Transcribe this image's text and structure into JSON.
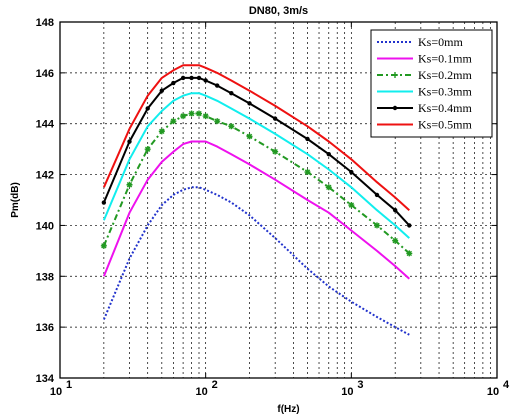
{
  "chart_data": {
    "type": "line",
    "title": "DN80,  3m/s",
    "xlabel": "f(Hz)",
    "ylabel": "Pm(dB)",
    "x_scale": "log",
    "xlim": [
      10,
      10000
    ],
    "ylim": [
      134,
      148
    ],
    "grid": true,
    "legend_position": "top-right",
    "x_tick_labels": [
      {
        "value": 10,
        "label": "10"
      },
      {
        "value": 100,
        "label": "10"
      },
      {
        "value": 1000,
        "label": "10"
      },
      {
        "value": 10000,
        "label": "10"
      }
    ],
    "y_ticks": [
      134,
      136,
      138,
      140,
      142,
      144,
      146,
      148
    ],
    "x": [
      20,
      30,
      40,
      50,
      60,
      70,
      80,
      90,
      100,
      120,
      150,
      200,
      300,
      500,
      700,
      1000,
      1500,
      2000,
      2500
    ],
    "series": [
      {
        "name": "Ks=0mm",
        "color": "#2233cc",
        "style": "dotted",
        "marker": "none",
        "values": [
          136.3,
          138.7,
          140.0,
          140.8,
          141.2,
          141.4,
          141.5,
          141.5,
          141.4,
          141.2,
          140.9,
          140.4,
          139.5,
          138.3,
          137.6,
          137.0,
          136.4,
          136.0,
          135.7
        ]
      },
      {
        "name": "Ks=0.1mm",
        "color": "#ee11ee",
        "style": "solid",
        "marker": "none",
        "values": [
          138.0,
          140.5,
          141.8,
          142.5,
          142.9,
          143.2,
          143.3,
          143.3,
          143.3,
          143.1,
          142.8,
          142.4,
          141.8,
          141.0,
          140.5,
          139.8,
          139.0,
          138.4,
          137.9
        ]
      },
      {
        "name": "Ks=0.2mm",
        "color": "#229922",
        "style": "dashdot",
        "marker": "star",
        "values": [
          139.2,
          141.6,
          143.0,
          143.7,
          144.1,
          144.3,
          144.4,
          144.4,
          144.3,
          144.1,
          143.9,
          143.5,
          142.9,
          142.1,
          141.5,
          140.8,
          140.0,
          139.4,
          138.9
        ]
      },
      {
        "name": "Ks=0.3mm",
        "color": "#11eeee",
        "style": "solid",
        "marker": "none",
        "values": [
          140.2,
          142.6,
          143.9,
          144.5,
          144.9,
          145.1,
          145.2,
          145.2,
          145.1,
          144.9,
          144.6,
          144.2,
          143.6,
          142.8,
          142.2,
          141.5,
          140.6,
          140.0,
          139.5
        ]
      },
      {
        "name": "Ks=0.4mm",
        "color": "#000000",
        "style": "solid",
        "marker": "dot",
        "values": [
          140.9,
          143.3,
          144.6,
          145.3,
          145.6,
          145.8,
          145.8,
          145.8,
          145.7,
          145.5,
          145.2,
          144.8,
          144.2,
          143.4,
          142.8,
          142.1,
          141.2,
          140.6,
          140.0
        ]
      },
      {
        "name": "Ks=0.5mm",
        "color": "#ee1111",
        "style": "solid",
        "marker": "none",
        "values": [
          141.5,
          143.8,
          145.1,
          145.8,
          146.1,
          146.3,
          146.3,
          146.3,
          146.2,
          146.0,
          145.7,
          145.3,
          144.7,
          143.9,
          143.3,
          142.6,
          141.7,
          141.1,
          140.6
        ]
      }
    ]
  }
}
